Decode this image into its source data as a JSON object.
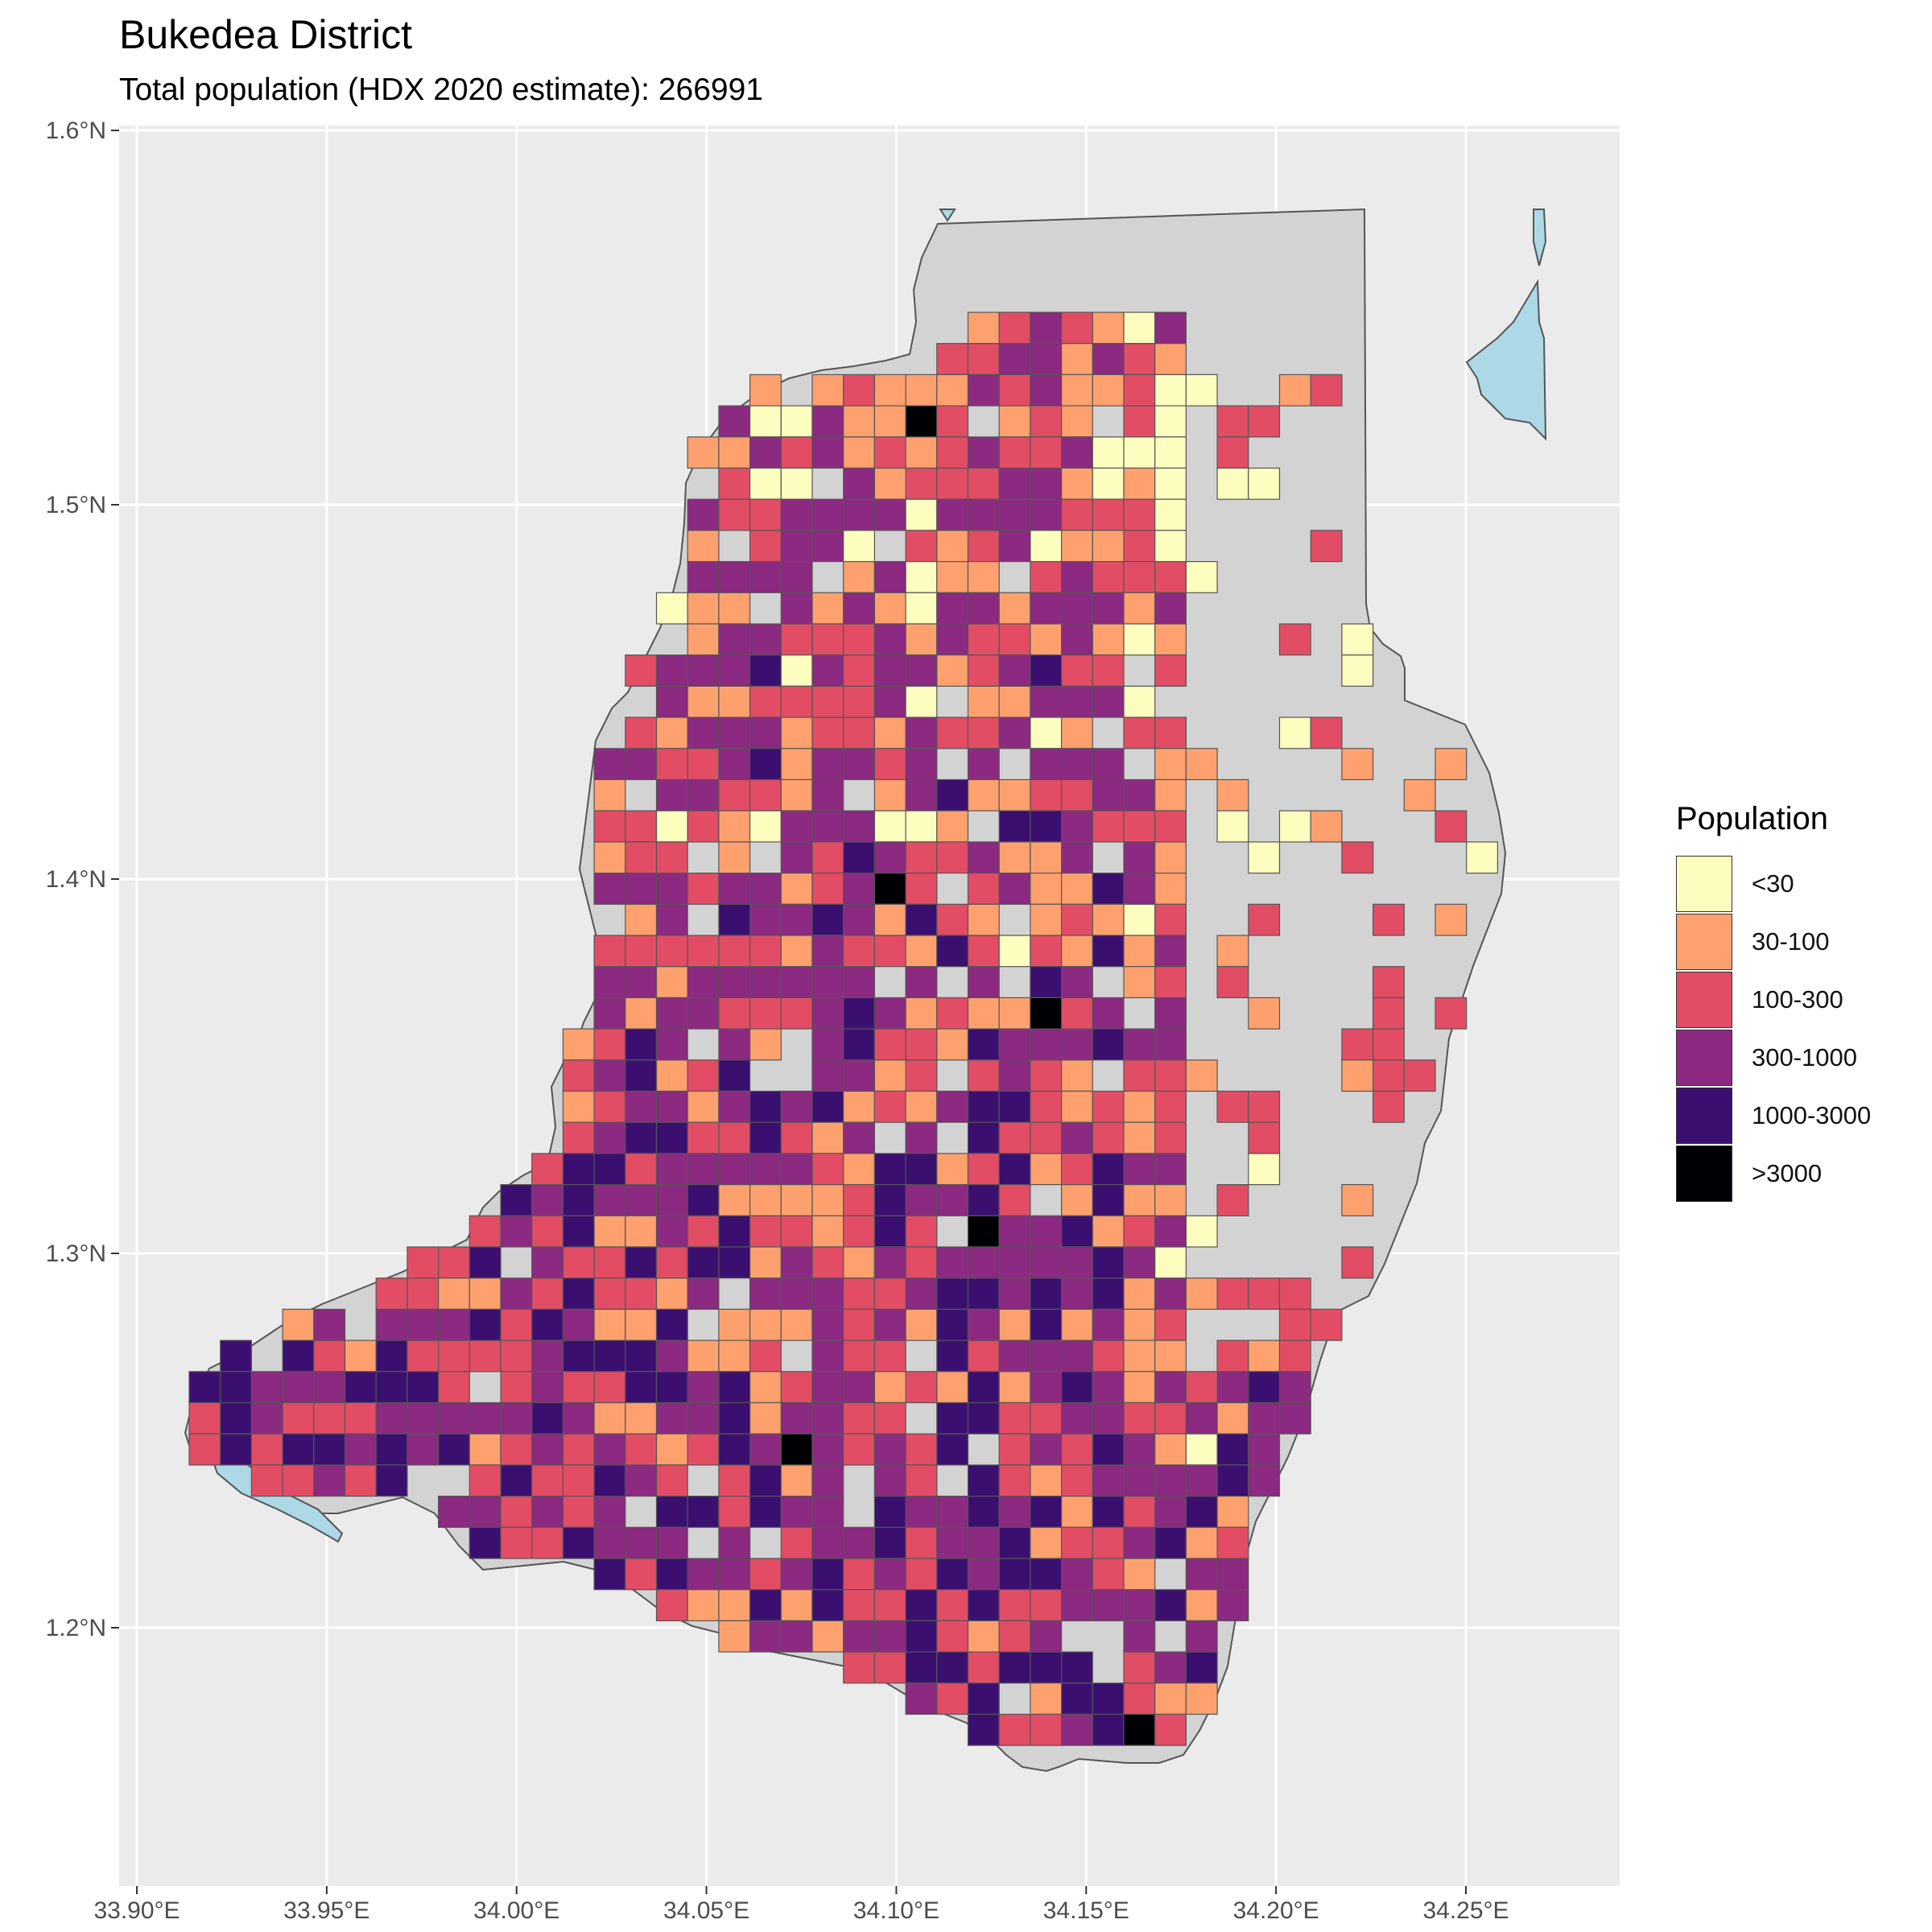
{
  "title": "Bukedea District",
  "subtitle": "Total population (HDX 2020 estimate): 266991",
  "axes": {
    "x_ticks": [
      {
        "value": 33.9,
        "label": "33.90°E"
      },
      {
        "value": 33.95,
        "label": "33.95°E"
      },
      {
        "value": 34.0,
        "label": "34.00°E"
      },
      {
        "value": 34.05,
        "label": "34.05°E"
      },
      {
        "value": 34.1,
        "label": "34.10°E"
      },
      {
        "value": 34.15,
        "label": "34.15°E"
      },
      {
        "value": 34.2,
        "label": "34.20°E"
      },
      {
        "value": 34.25,
        "label": "34.25°E"
      }
    ],
    "y_ticks": [
      {
        "value": 1.2,
        "label": "1.2°N"
      },
      {
        "value": 1.3,
        "label": "1.3°N"
      },
      {
        "value": 1.4,
        "label": "1.4°N"
      },
      {
        "value": 1.5,
        "label": "1.5°N"
      },
      {
        "value": 1.6,
        "label": "1.6°N"
      }
    ]
  },
  "legend": {
    "title": "Population",
    "items": [
      {
        "label": "<30",
        "color": "#FCFDBF"
      },
      {
        "label": "30-100",
        "color": "#FEA16E"
      },
      {
        "label": "100-300",
        "color": "#E24D65"
      },
      {
        "label": "300-1000",
        "color": "#8C2981"
      },
      {
        "label": "1000-3000",
        "color": "#3B0F70"
      },
      {
        "label": ">3000",
        "color": "#000004"
      }
    ]
  },
  "colors": {
    "panel_background": "#EBEBEB",
    "grid": "#FFFFFF",
    "district_fill": "#D3D3D3",
    "water": "#ADD8E6"
  }
}
